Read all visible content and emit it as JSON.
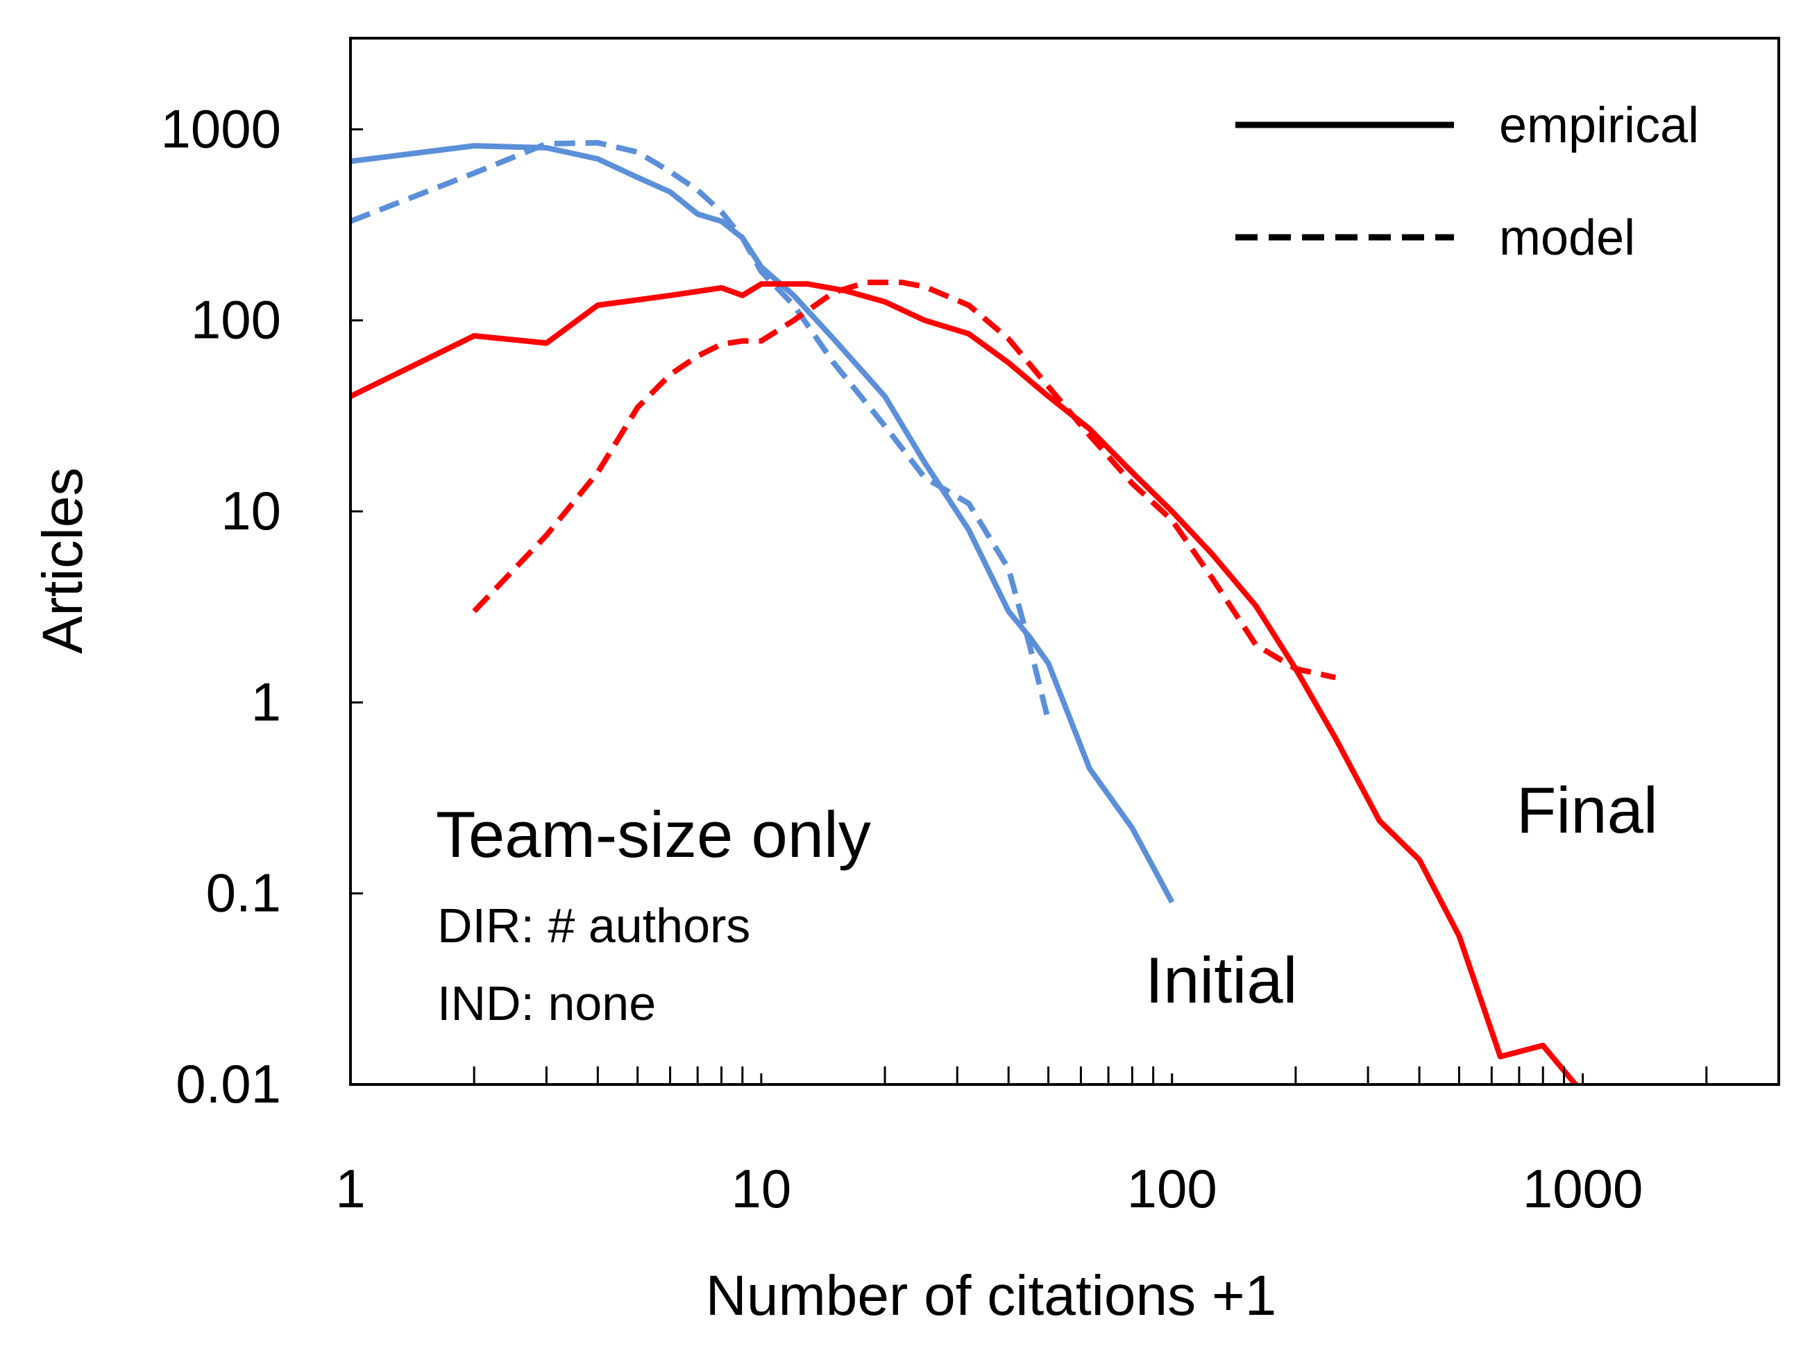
{
  "chart_data": {
    "type": "line",
    "title": "",
    "xlabel": "Number of citations +1",
    "ylabel": "Articles",
    "xscale": "log",
    "yscale": "log",
    "xlim": [
      1,
      3000
    ],
    "ylim": [
      0.01,
      3000
    ],
    "xticks": [
      1,
      10,
      100,
      1000
    ],
    "xtick_labels": [
      "1",
      "10",
      "100",
      "1000"
    ],
    "yticks": [
      0.01,
      0.1,
      1,
      10,
      100,
      1000
    ],
    "ytick_labels": [
      "0.01",
      "0.1",
      "1",
      "10",
      "100",
      "1000"
    ],
    "legend": {
      "position": "top-right",
      "entries": [
        {
          "label": "empirical",
          "style": "solid"
        },
        {
          "label": "model",
          "style": "dashed"
        }
      ]
    },
    "annotations": [
      {
        "id": "panel-title",
        "text": "Team-size only"
      },
      {
        "id": "dir-text",
        "text": "DIR: # authors"
      },
      {
        "id": "ind-text",
        "text": "IND: none"
      },
      {
        "id": "initial-label",
        "text": "Initial"
      },
      {
        "id": "final-label",
        "text": "Final"
      }
    ],
    "series": [
      {
        "name": "Initial empirical",
        "group": "Initial",
        "style": "solid",
        "color": "#5b8fd9",
        "x": [
          1,
          2,
          3,
          4,
          5,
          6,
          7,
          8,
          9,
          10,
          12,
          15,
          20,
          25,
          32,
          40,
          45,
          50,
          63,
          80,
          100
        ],
        "y": [
          680,
          820,
          800,
          700,
          560,
          470,
          360,
          330,
          270,
          190,
          135,
          80,
          40,
          18,
          8,
          3,
          2.2,
          1.6,
          0.45,
          0.22,
          0.09
        ]
      },
      {
        "name": "Initial model",
        "group": "Initial",
        "style": "dashed",
        "color": "#5b8fd9",
        "x": [
          1,
          2,
          3,
          4,
          5,
          6,
          7,
          8,
          9,
          10,
          12,
          15,
          20,
          25,
          32,
          40,
          45,
          50
        ],
        "y": [
          330,
          590,
          840,
          850,
          760,
          600,
          480,
          370,
          270,
          180,
          120,
          60,
          28,
          15,
          11,
          5,
          2,
          0.8
        ]
      },
      {
        "name": "Final empirical",
        "group": "Final",
        "style": "solid",
        "color": "#ff0000",
        "x": [
          1,
          2,
          3,
          4,
          5,
          6,
          8,
          9,
          10,
          13,
          16,
          20,
          25,
          32,
          40,
          50,
          63,
          80,
          100,
          125,
          160,
          200,
          250,
          320,
          400,
          500,
          630,
          800,
          1000
        ],
        "y": [
          40,
          83,
          76,
          120,
          128,
          135,
          148,
          135,
          155,
          155,
          143,
          125,
          100,
          85,
          60,
          40,
          27,
          16,
          10,
          6,
          3.2,
          1.5,
          0.65,
          0.24,
          0.15,
          0.06,
          0.014,
          0.016,
          0.009
        ]
      },
      {
        "name": "Final model",
        "group": "Final",
        "style": "dashed",
        "color": "#ff0000",
        "x": [
          2,
          3,
          4,
          5,
          6,
          7,
          8,
          9,
          10,
          12,
          15,
          18,
          22,
          25,
          32,
          40,
          50,
          63,
          80,
          100,
          125,
          160,
          200,
          250
        ],
        "y": [
          3,
          7.5,
          16,
          35,
          52,
          65,
          75,
          78,
          78,
          100,
          140,
          158,
          158,
          150,
          120,
          80,
          45,
          25,
          14,
          9,
          4.5,
          2,
          1.5,
          1.35
        ]
      }
    ]
  }
}
